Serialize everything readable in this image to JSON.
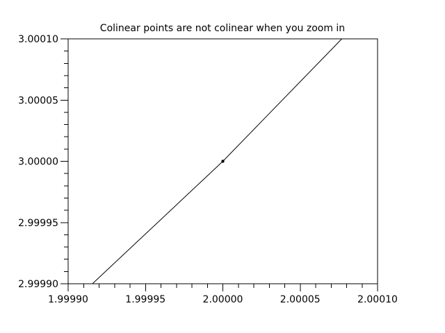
{
  "figure": {
    "background": "#ffffff",
    "text_color": "#000000",
    "axis_color": "#000000"
  },
  "chart_data": {
    "type": "line",
    "title": "Colinear points are not colinear when you zoom in",
    "xlabel": "",
    "ylabel": "",
    "xlim": [
      1.9999,
      2.0001
    ],
    "ylim": [
      2.9999,
      3.0001
    ],
    "x_tick_values": [
      1.9999,
      1.99995,
      2.0,
      2.00005,
      2.0001
    ],
    "x_tick_labels": [
      "1.99990",
      "1.99995",
      "2.00000",
      "2.00005",
      "2.00010"
    ],
    "y_tick_values": [
      2.9999,
      2.99995,
      3.0,
      3.00005,
      3.0001
    ],
    "y_tick_labels": [
      "2.99990",
      "2.99995",
      "3.00000",
      "3.00005",
      "3.00010"
    ],
    "minor_tick_step": 1e-05,
    "grid": false,
    "legend": "none",
    "series": [
      {
        "name": "data-line",
        "type": "line",
        "color": "#000000",
        "width": 1,
        "points": [
          [
            1.9999157,
            2.9999
          ],
          [
            2.0,
            3.0
          ],
          [
            2.0000769,
            3.0001
          ]
        ]
      },
      {
        "name": "data-point-marker",
        "type": "scatter",
        "color": "#000000",
        "marker": "circle",
        "marker_radius": 2.2,
        "points": [
          [
            2.0,
            3.0
          ]
        ]
      }
    ]
  }
}
